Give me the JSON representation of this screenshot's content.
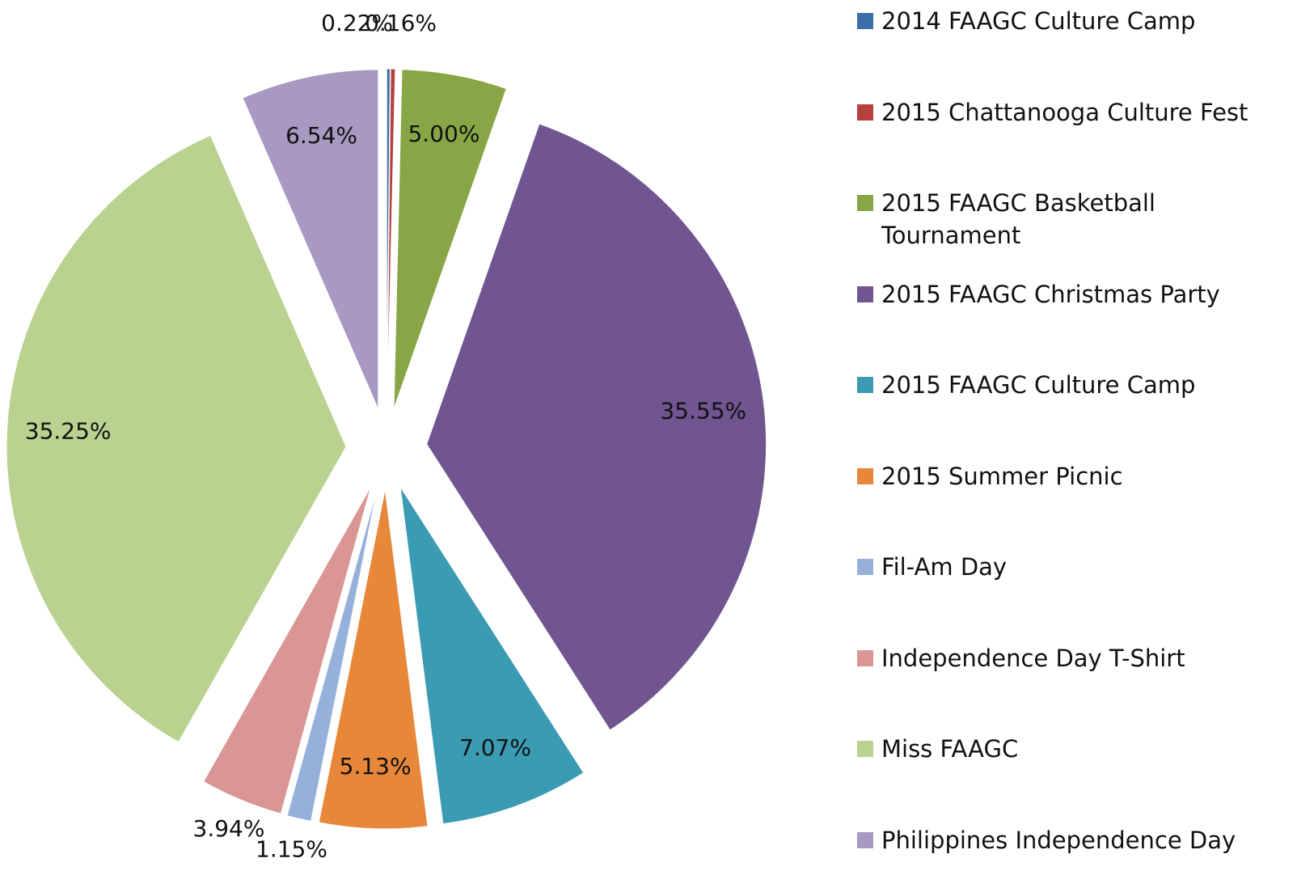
{
  "chart_data": {
    "type": "pie",
    "categories": [
      "2014 FAAGC Culture Camp",
      "2015 Chattanooga Culture Fest",
      "2015 FAAGC Basketball Tournament",
      "2015 FAAGC Christmas Party",
      "2015 FAAGC Culture Camp",
      "2015 Summer Picnic",
      "Fil-Am Day",
      "Independence Day T-Shirt",
      "Miss FAAGC",
      "Philippines Independence Day"
    ],
    "values": [
      0.16,
      0.22,
      5.0,
      35.55,
      7.07,
      5.13,
      1.15,
      3.94,
      35.25,
      6.54
    ],
    "value_labels": [
      "0.16%",
      "0.22%",
      "5.00%",
      "35.55%",
      "7.07%",
      "5.13%",
      "1.15%",
      "3.94%",
      "35.25%",
      "6.54%"
    ],
    "colors": [
      "#3c6fa8",
      "#b5403d",
      "#87a646",
      "#705590",
      "#3b9bb3",
      "#e6873a",
      "#95b0da",
      "#d99694",
      "#b9d28f",
      "#a899c2"
    ],
    "legend": "right"
  }
}
